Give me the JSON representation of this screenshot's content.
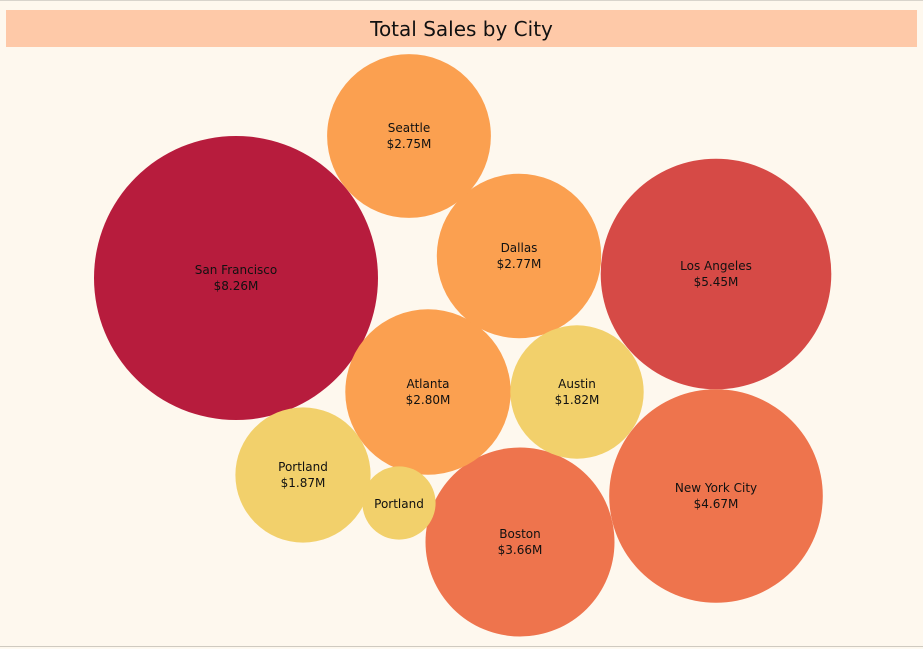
{
  "chart_data": {
    "type": "bubble",
    "title": "Total Sales by City",
    "points": [
      {
        "label": "San Francisco",
        "value_label": "$8.26M",
        "value": 8.26,
        "color": "#b71c3d"
      },
      {
        "label": "Los Angeles",
        "value_label": "$5.45M",
        "value": 5.45,
        "color": "#d64a46"
      },
      {
        "label": "New York City",
        "value_label": "$4.67M",
        "value": 4.67,
        "color": "#ee744d"
      },
      {
        "label": "Boston",
        "value_label": "$3.66M",
        "value": 3.66,
        "color": "#ee744d"
      },
      {
        "label": "Atlanta",
        "value_label": "$2.80M",
        "value": 2.8,
        "color": "#fba050"
      },
      {
        "label": "Dallas",
        "value_label": "$2.77M",
        "value": 2.77,
        "color": "#fba050"
      },
      {
        "label": "Seattle",
        "value_label": "$2.75M",
        "value": 2.75,
        "color": "#fba050"
      },
      {
        "label": "Portland",
        "value_label": "$1.87M",
        "value": 1.87,
        "color": "#f2d06b"
      },
      {
        "label": "Austin",
        "value_label": "$1.82M",
        "value": 1.82,
        "color": "#f2d06b"
      },
      {
        "label": "Portland",
        "value_label": "",
        "value": 0.55,
        "color": "#f2d06b"
      }
    ]
  }
}
